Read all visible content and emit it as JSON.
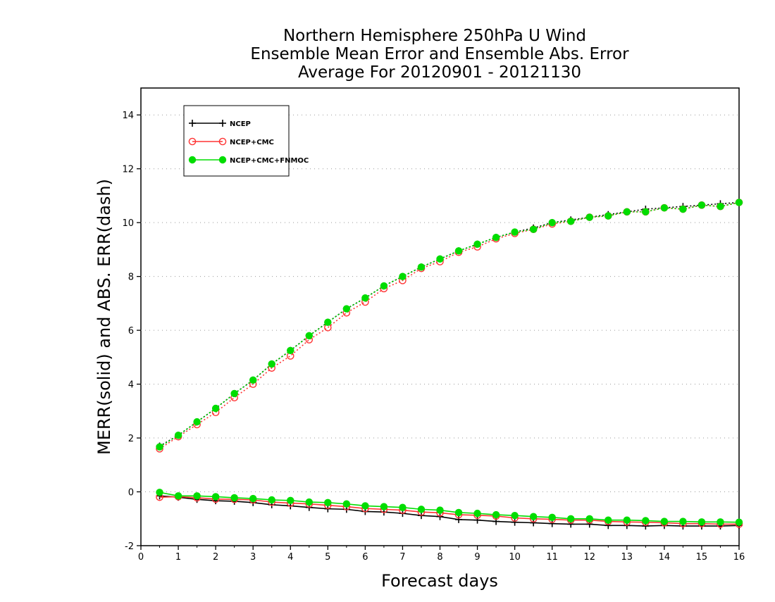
{
  "chart_data": {
    "type": "line",
    "title": [
      "Northern Hemisphere 250hPa U Wind",
      "Ensemble Mean Error and Ensemble Abs. Error",
      "Average For 20120901 - 20121130"
    ],
    "xlabel": "Forecast days",
    "ylabel": "MERR(solid) and ABS. ERR(dash)",
    "xlim": [
      0,
      16
    ],
    "ylim": [
      -2,
      15
    ],
    "xticks": [
      "0",
      "1",
      "2",
      "3",
      "4",
      "5",
      "6",
      "7",
      "8",
      "9",
      "10",
      "11",
      "12",
      "13",
      "14",
      "15",
      "16"
    ],
    "yticks": [
      "-2",
      "0",
      "2",
      "4",
      "6",
      "8",
      "10",
      "12",
      "14"
    ],
    "grid": "horizontal-dotted",
    "legend_position": "top-left",
    "x": [
      0.5,
      1,
      1.5,
      2,
      2.5,
      3,
      3.5,
      4,
      4.5,
      5,
      5.5,
      6,
      6.5,
      7,
      7.5,
      8,
      8.5,
      9,
      9.5,
      10,
      10.5,
      11,
      11.5,
      12,
      12.5,
      13,
      13.5,
      14,
      14.5,
      15,
      15.5,
      16
    ],
    "series": [
      {
        "name": "NCEP",
        "color": "#000000",
        "marker": "plus",
        "merr": [
          -0.15,
          -0.2,
          -0.28,
          -0.33,
          -0.35,
          -0.4,
          -0.48,
          -0.52,
          -0.58,
          -0.63,
          -0.65,
          -0.73,
          -0.75,
          -0.8,
          -0.88,
          -0.92,
          -1.03,
          -1.05,
          -1.1,
          -1.13,
          -1.15,
          -1.18,
          -1.2,
          -1.2,
          -1.25,
          -1.25,
          -1.27,
          -1.25,
          -1.27,
          -1.27,
          -1.27,
          -1.25
        ],
        "abs_err": [
          1.7,
          2.1,
          2.6,
          3.1,
          3.65,
          4.15,
          4.75,
          5.25,
          5.8,
          6.3,
          6.8,
          7.2,
          7.65,
          8.0,
          8.35,
          8.65,
          8.95,
          9.2,
          9.45,
          9.65,
          9.8,
          10.0,
          10.1,
          10.2,
          10.3,
          10.4,
          10.5,
          10.55,
          10.6,
          10.65,
          10.7,
          10.75
        ]
      },
      {
        "name": "NCEP+CMC",
        "color": "#ff3333",
        "marker": "open-circle",
        "merr": [
          -0.2,
          -0.18,
          -0.22,
          -0.27,
          -0.28,
          -0.3,
          -0.38,
          -0.42,
          -0.45,
          -0.5,
          -0.55,
          -0.62,
          -0.65,
          -0.68,
          -0.75,
          -0.78,
          -0.85,
          -0.87,
          -0.9,
          -0.97,
          -1.0,
          -1.02,
          -1.05,
          -1.05,
          -1.1,
          -1.12,
          -1.13,
          -1.15,
          -1.18,
          -1.18,
          -1.2,
          -1.2
        ],
        "abs_err": [
          1.6,
          2.05,
          2.5,
          2.95,
          3.5,
          4.0,
          4.6,
          5.05,
          5.65,
          6.1,
          6.65,
          7.05,
          7.55,
          7.85,
          8.3,
          8.55,
          8.9,
          9.1,
          9.4,
          9.6,
          9.75,
          9.95,
          10.05,
          10.2,
          10.25,
          10.4,
          10.4,
          10.55,
          10.5,
          10.65,
          10.6,
          10.75
        ]
      },
      {
        "name": "NCEP+CMC+FNMOC",
        "color": "#00dd00",
        "marker": "filled-circle",
        "merr": [
          -0.02,
          -0.15,
          -0.15,
          -0.18,
          -0.22,
          -0.25,
          -0.3,
          -0.32,
          -0.38,
          -0.4,
          -0.45,
          -0.52,
          -0.55,
          -0.58,
          -0.65,
          -0.68,
          -0.77,
          -0.8,
          -0.85,
          -0.88,
          -0.92,
          -0.95,
          -1.0,
          -1.0,
          -1.05,
          -1.05,
          -1.07,
          -1.1,
          -1.1,
          -1.12,
          -1.12,
          -1.13
        ],
        "abs_err": [
          1.67,
          2.1,
          2.6,
          3.1,
          3.65,
          4.15,
          4.75,
          5.25,
          5.8,
          6.3,
          6.8,
          7.2,
          7.65,
          8.0,
          8.35,
          8.65,
          8.95,
          9.2,
          9.45,
          9.65,
          9.75,
          10.0,
          10.05,
          10.2,
          10.25,
          10.4,
          10.4,
          10.55,
          10.5,
          10.65,
          10.6,
          10.75
        ]
      }
    ]
  }
}
